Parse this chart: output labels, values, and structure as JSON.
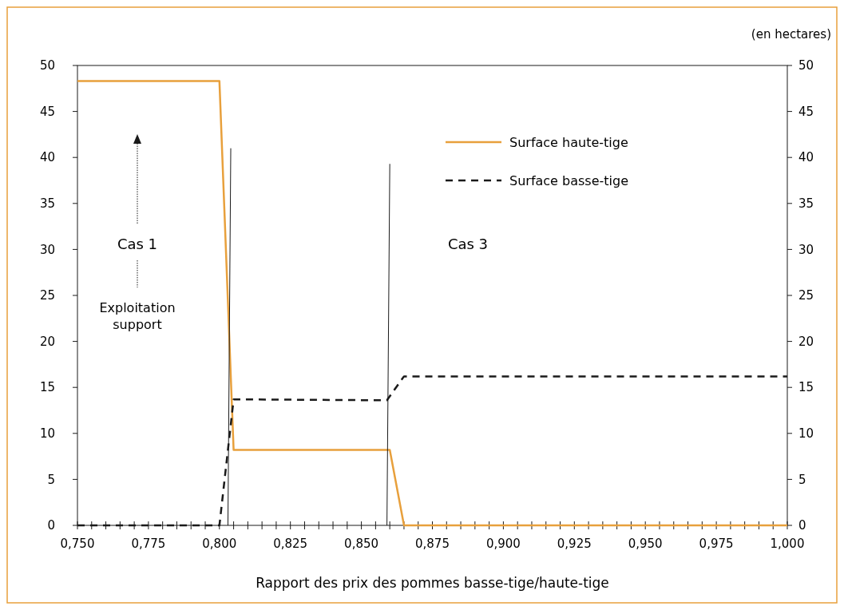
{
  "chart_data": {
    "type": "line",
    "xlabel": "Rapport des prix des pommes basse-tige/haute-tige",
    "y2label": "(en hectares)",
    "xlim": [
      0.75,
      1.0
    ],
    "xticks": [
      {
        "value": 0.75,
        "label": "0,750"
      },
      {
        "value": 0.755,
        "label": null
      },
      {
        "value": 0.76,
        "label": null
      },
      {
        "value": 0.765,
        "label": null
      },
      {
        "value": 0.77,
        "label": null
      },
      {
        "value": 0.775,
        "label": "0,775"
      },
      {
        "value": 0.78,
        "label": null
      },
      {
        "value": 0.785,
        "label": null
      },
      {
        "value": 0.79,
        "label": null
      },
      {
        "value": 0.795,
        "label": null
      },
      {
        "value": 0.8,
        "label": "0,800"
      },
      {
        "value": 0.805,
        "label": null
      },
      {
        "value": 0.81,
        "label": null
      },
      {
        "value": 0.815,
        "label": null
      },
      {
        "value": 0.82,
        "label": null
      },
      {
        "value": 0.825,
        "label": "0,825"
      },
      {
        "value": 0.83,
        "label": null
      },
      {
        "value": 0.835,
        "label": null
      },
      {
        "value": 0.84,
        "label": null
      },
      {
        "value": 0.845,
        "label": null
      },
      {
        "value": 0.85,
        "label": "0,850"
      },
      {
        "value": 0.855,
        "label": null
      },
      {
        "value": 0.86,
        "label": null
      },
      {
        "value": 0.865,
        "label": null
      },
      {
        "value": 0.87,
        "label": null
      },
      {
        "value": 0.875,
        "label": "0,875"
      },
      {
        "value": 0.88,
        "label": null
      },
      {
        "value": 0.885,
        "label": null
      },
      {
        "value": 0.89,
        "label": null
      },
      {
        "value": 0.895,
        "label": null
      },
      {
        "value": 0.9,
        "label": "0,900"
      },
      {
        "value": 0.905,
        "label": null
      },
      {
        "value": 0.91,
        "label": null
      },
      {
        "value": 0.915,
        "label": null
      },
      {
        "value": 0.92,
        "label": null
      },
      {
        "value": 0.925,
        "label": "0,925"
      },
      {
        "value": 0.93,
        "label": null
      },
      {
        "value": 0.935,
        "label": null
      },
      {
        "value": 0.94,
        "label": null
      },
      {
        "value": 0.945,
        "label": null
      },
      {
        "value": 0.95,
        "label": "0,950"
      },
      {
        "value": 0.955,
        "label": null
      },
      {
        "value": 0.96,
        "label": null
      },
      {
        "value": 0.965,
        "label": null
      },
      {
        "value": 0.97,
        "label": null
      },
      {
        "value": 0.975,
        "label": "0,975"
      },
      {
        "value": 0.98,
        "label": null
      },
      {
        "value": 0.985,
        "label": null
      },
      {
        "value": 0.99,
        "label": null
      },
      {
        "value": 0.995,
        "label": null
      },
      {
        "value": 1.0,
        "label": "1,000"
      }
    ],
    "ylim": [
      0,
      50
    ],
    "yticks": [
      0,
      5,
      10,
      15,
      20,
      25,
      30,
      35,
      40,
      45,
      50
    ],
    "y2lim": [
      0,
      50
    ],
    "y2ticks": [
      0,
      5,
      10,
      15,
      20,
      25,
      30,
      35,
      40,
      45,
      50
    ],
    "grid": false,
    "legend": "top right",
    "marker": "none",
    "series": [
      {
        "name": "Surface haute-tige",
        "color": "#e8a03c",
        "line_style": "solid",
        "x": [
          0.75,
          0.8,
          0.805,
          0.86,
          0.865,
          1.0
        ],
        "values": [
          48.3,
          48.3,
          8.2,
          8.2,
          0,
          0
        ]
      },
      {
        "name": "Surface basse-tige",
        "color": "#1a1a1a",
        "line_style": "dashed",
        "x": [
          0.75,
          0.8,
          0.805,
          0.859,
          0.865,
          1.0
        ],
        "values": [
          0,
          0,
          13.7,
          13.6,
          16.2,
          16.2
        ]
      },
      {
        "color": "#1a1a1a",
        "line_style": "solid",
        "x": [
          0.803,
          0.804
        ],
        "values": [
          0,
          41
        ]
      },
      {
        "color": "#1a1a1a",
        "line_style": "solid",
        "x": [
          0.859,
          0.86
        ],
        "values": [
          0,
          39.3
        ]
      }
    ],
    "annotations": [
      "Cas 1",
      "Exploitation support",
      "Cas 3"
    ]
  }
}
